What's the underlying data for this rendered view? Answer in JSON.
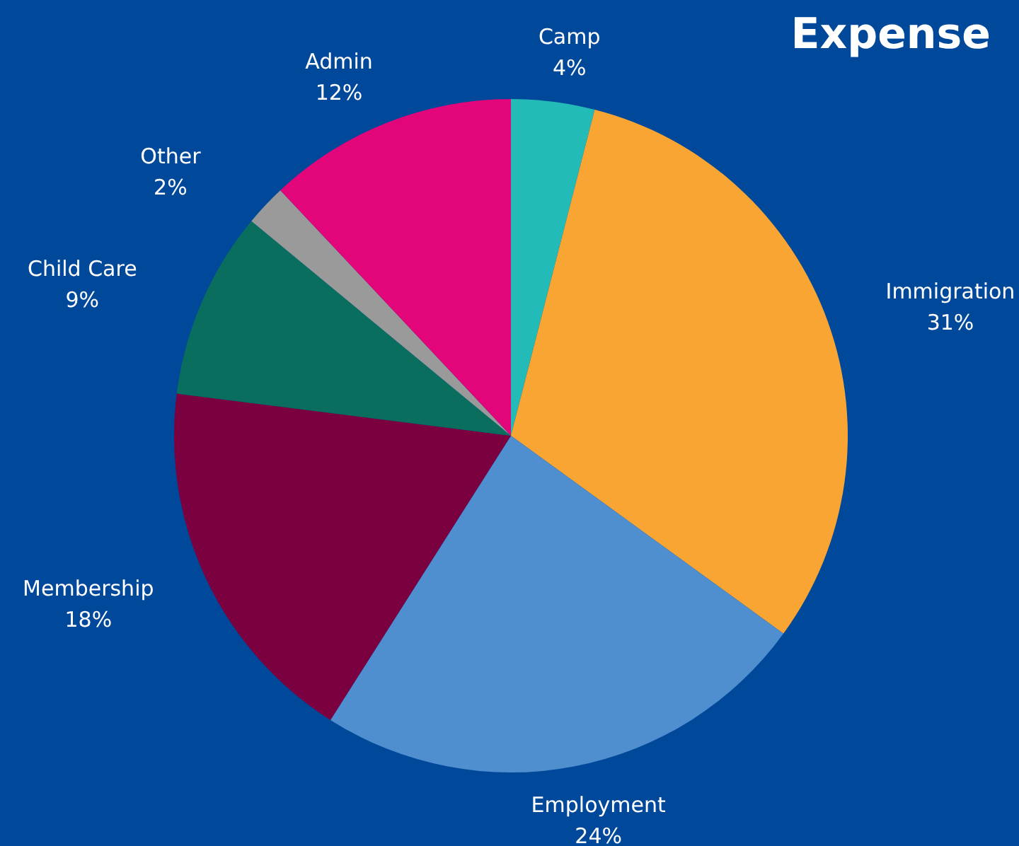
{
  "chart_data": {
    "type": "pie",
    "title": "Expense",
    "categories": [
      "Camp",
      "Immigration",
      "Employment",
      "Membership",
      "Child Care",
      "Other",
      "Admin"
    ],
    "values": [
      4,
      31,
      24,
      18,
      9,
      2,
      12
    ],
    "value_labels": [
      "4%",
      "31%",
      "24%",
      "18%",
      "9%",
      "2%",
      "12%"
    ],
    "colors": [
      "#22bbb8",
      "#f9a533",
      "#4f8fcf",
      "#7a0040",
      "#0a6e5e",
      "#9a9a9a",
      "#e2067a"
    ]
  }
}
